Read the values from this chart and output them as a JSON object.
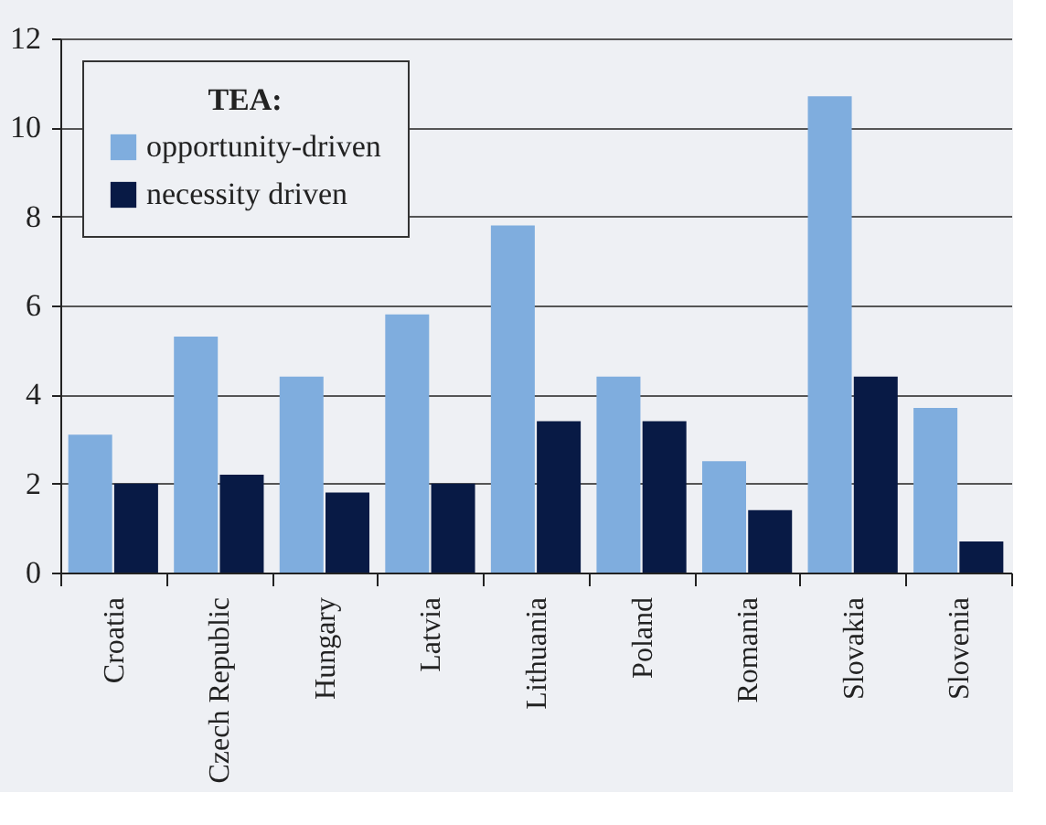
{
  "chart_data": {
    "type": "bar",
    "categories": [
      "Croatia",
      "Czech Republic",
      "Hungary",
      "Latvia",
      "Lithuania",
      "Poland",
      "Romania",
      "Slovakia",
      "Slovenia"
    ],
    "legend_title": "TEA:",
    "series": [
      {
        "name": "opportunity-driven",
        "color": "#7fadde",
        "values": [
          3.1,
          5.3,
          4.4,
          5.8,
          7.8,
          4.4,
          2.5,
          10.7,
          3.7
        ]
      },
      {
        "name": "necessity driven",
        "color": "#081a45",
        "values": [
          2.0,
          2.2,
          1.8,
          2.0,
          3.4,
          3.4,
          1.4,
          4.4,
          0.7
        ]
      }
    ],
    "ylim": [
      0,
      12
    ],
    "yticks": [
      0,
      2,
      4,
      6,
      8,
      10,
      12
    ],
    "grid": "y",
    "legend": "top left"
  }
}
